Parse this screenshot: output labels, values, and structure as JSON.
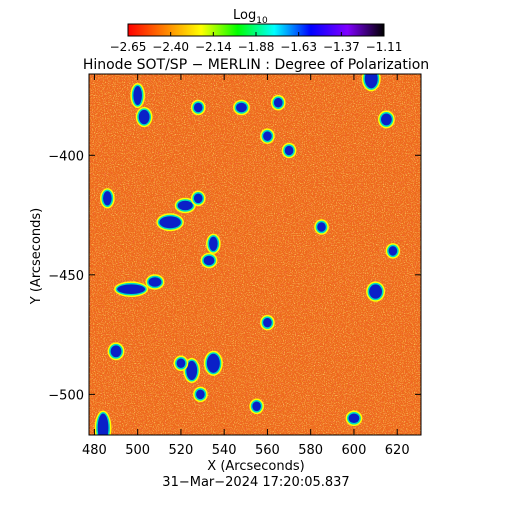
{
  "colorbar": {
    "label_main": "Log",
    "label_sub": "10",
    "ticks": [
      "−2.65",
      "−2.40",
      "−2.14",
      "−1.88",
      "−1.63",
      "−1.37",
      "−1.11"
    ],
    "range": [
      -2.65,
      -1.11
    ],
    "colormap": [
      "#ff0000",
      "#ff8000",
      "#ffff00",
      "#00ff00",
      "#00ffff",
      "#0000ff",
      "#8000ff",
      "#000000"
    ]
  },
  "title": "Hinode SOT/SP − MERLIN : Degree of Polarization",
  "x_axis": {
    "label": "X (Arcseconds)",
    "ticks": [
      "480",
      "500",
      "520",
      "540",
      "560",
      "580",
      "600",
      "620"
    ],
    "values": [
      480,
      500,
      520,
      540,
      560,
      580,
      600,
      620
    ],
    "range": [
      477.5,
      631
    ]
  },
  "y_axis": {
    "label": "Y (Arcseconds)",
    "ticks": [
      "−400",
      "−450",
      "−500"
    ],
    "values": [
      -400,
      -450,
      -500
    ],
    "range": [
      -517,
      -366
    ]
  },
  "timestamp": "31−Mar−2024 17:20:05.837",
  "image": {
    "background_color": "#ee6a1c",
    "features": [
      {
        "x": 484,
        "y": -514,
        "w": 5,
        "h": 12
      },
      {
        "x": 490,
        "y": -482,
        "w": 5,
        "h": 5
      },
      {
        "x": 497,
        "y": -456,
        "w": 13,
        "h": 4
      },
      {
        "x": 508,
        "y": -453,
        "w": 6,
        "h": 4
      },
      {
        "x": 486,
        "y": -418,
        "w": 4,
        "h": 6
      },
      {
        "x": 500,
        "y": -375,
        "w": 4,
        "h": 8
      },
      {
        "x": 503,
        "y": -384,
        "w": 5,
        "h": 6
      },
      {
        "x": 515,
        "y": -428,
        "w": 10,
        "h": 5
      },
      {
        "x": 522,
        "y": -421,
        "w": 7,
        "h": 4
      },
      {
        "x": 528,
        "y": -418,
        "w": 4,
        "h": 4
      },
      {
        "x": 535,
        "y": -437,
        "w": 4,
        "h": 6
      },
      {
        "x": 533,
        "y": -444,
        "w": 5,
        "h": 4
      },
      {
        "x": 525,
        "y": -490,
        "w": 5,
        "h": 8
      },
      {
        "x": 535,
        "y": -487,
        "w": 6,
        "h": 8
      },
      {
        "x": 529,
        "y": -500,
        "w": 4,
        "h": 4
      },
      {
        "x": 520,
        "y": -487,
        "w": 4,
        "h": 4
      },
      {
        "x": 528,
        "y": -380,
        "w": 4,
        "h": 4
      },
      {
        "x": 548,
        "y": -380,
        "w": 5,
        "h": 4
      },
      {
        "x": 560,
        "y": -392,
        "w": 4,
        "h": 4
      },
      {
        "x": 565,
        "y": -378,
        "w": 4,
        "h": 4
      },
      {
        "x": 570,
        "y": -398,
        "w": 4,
        "h": 4
      },
      {
        "x": 608,
        "y": -368,
        "w": 6,
        "h": 8
      },
      {
        "x": 615,
        "y": -385,
        "w": 5,
        "h": 5
      },
      {
        "x": 610,
        "y": -457,
        "w": 6,
        "h": 6
      },
      {
        "x": 618,
        "y": -440,
        "w": 4,
        "h": 4
      },
      {
        "x": 600,
        "y": -510,
        "w": 5,
        "h": 4
      },
      {
        "x": 560,
        "y": -470,
        "w": 4,
        "h": 4
      },
      {
        "x": 585,
        "y": -430,
        "w": 4,
        "h": 4
      },
      {
        "x": 555,
        "y": -505,
        "w": 4,
        "h": 4
      }
    ]
  }
}
